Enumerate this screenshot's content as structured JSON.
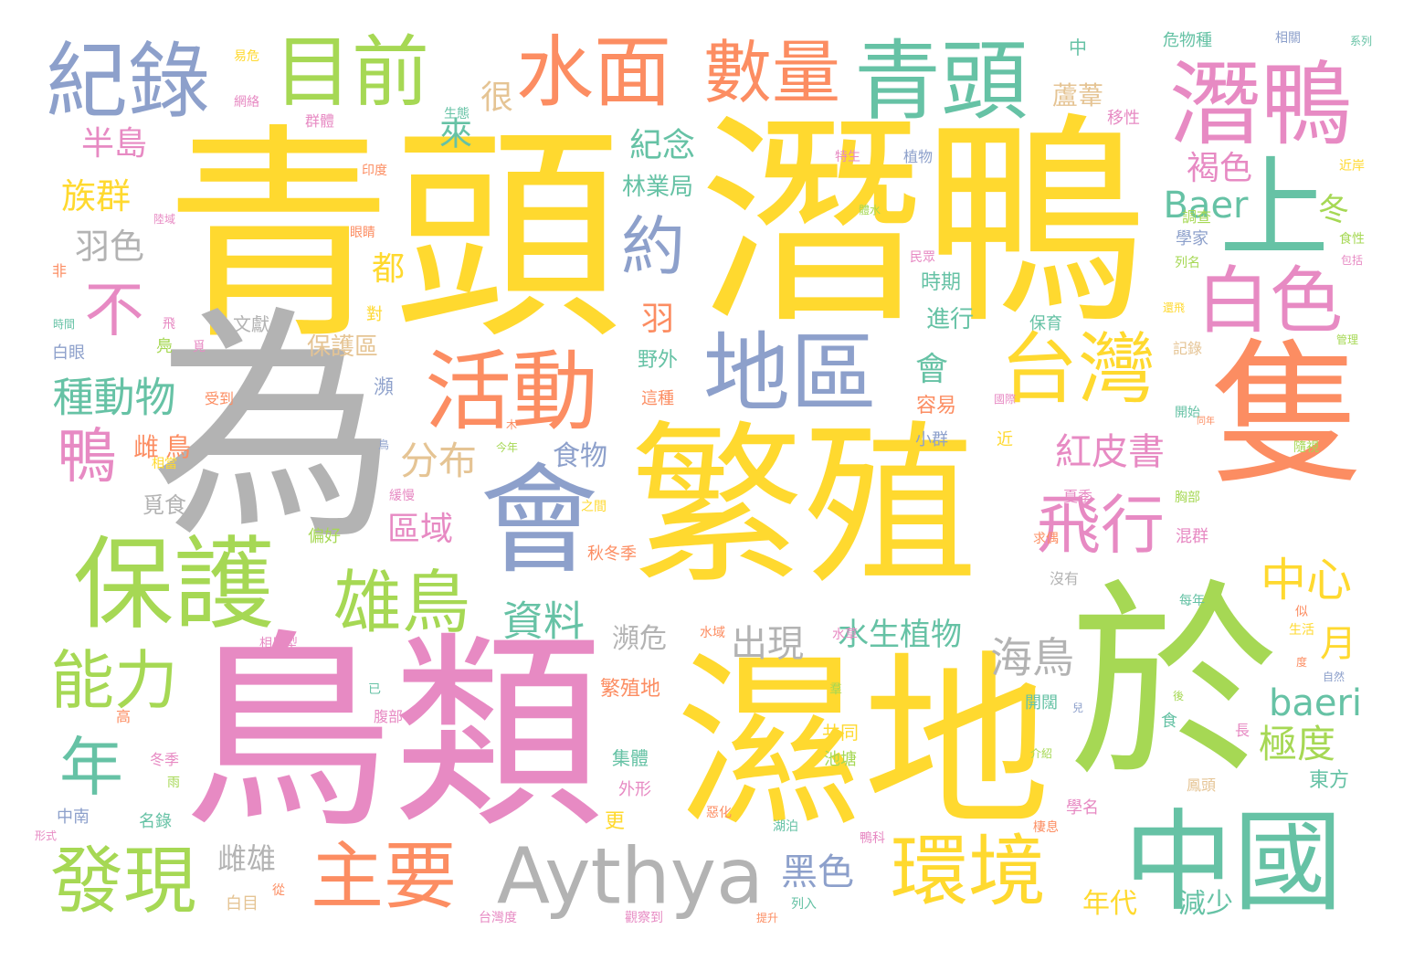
{
  "palette": {
    "yellow": "#ffd92f",
    "pink": "#e78ac3",
    "green": "#a6d854",
    "teal": "#66c2a5",
    "orange": "#fc8d62",
    "blue": "#8da0cb",
    "gray": "#b3b3b3",
    "tan": "#e5c494"
  },
  "words": [
    {
      "text": "青頭",
      "color": "yellow"
    },
    {
      "text": "潛鴨",
      "color": "yellow"
    },
    {
      "text": "為",
      "color": "gray"
    },
    {
      "text": "鳥類",
      "color": "pink"
    },
    {
      "text": "繁殖",
      "color": "yellow"
    },
    {
      "text": "濕地",
      "color": "yellow"
    },
    {
      "text": "於",
      "color": "green"
    },
    {
      "text": "隻",
      "color": "orange"
    },
    {
      "text": "中國",
      "color": "teal"
    },
    {
      "text": "會",
      "color": "blue"
    },
    {
      "text": "保護",
      "color": "green"
    },
    {
      "text": "上",
      "color": "teal"
    },
    {
      "text": "青頭",
      "color": "teal"
    },
    {
      "text": "潛鴨",
      "color": "pink"
    },
    {
      "text": "紀錄",
      "color": "blue"
    },
    {
      "text": "目前",
      "color": "green"
    },
    {
      "text": "水面",
      "color": "orange"
    },
    {
      "text": "數量",
      "color": "orange"
    },
    {
      "text": "活動",
      "color": "orange"
    },
    {
      "text": "地區",
      "color": "blue"
    },
    {
      "text": "台灣",
      "color": "yellow"
    },
    {
      "text": "白色",
      "color": "pink"
    },
    {
      "text": "Aythya",
      "color": "gray"
    },
    {
      "text": "環境",
      "color": "yellow"
    },
    {
      "text": "主要",
      "color": "orange"
    },
    {
      "text": "發現",
      "color": "green"
    },
    {
      "text": "雄鳥",
      "color": "green"
    },
    {
      "text": "能力",
      "color": "green"
    },
    {
      "text": "飛行",
      "color": "pink"
    },
    {
      "text": "約",
      "color": "blue"
    },
    {
      "text": "不",
      "color": "pink"
    },
    {
      "text": "鴨",
      "color": "pink"
    },
    {
      "text": "年",
      "color": "teal"
    },
    {
      "text": "種動物",
      "color": "teal"
    },
    {
      "text": "中心",
      "color": "yellow"
    },
    {
      "text": "紅皮書",
      "color": "pink"
    },
    {
      "text": "Baer",
      "color": "teal"
    },
    {
      "text": "baeri",
      "color": "teal"
    },
    {
      "text": "資料",
      "color": "teal"
    },
    {
      "text": "族群",
      "color": "yellow"
    },
    {
      "text": "羽色",
      "color": "gray"
    },
    {
      "text": "半島",
      "color": "pink"
    },
    {
      "text": "來",
      "color": "teal"
    },
    {
      "text": "很",
      "color": "tan"
    },
    {
      "text": "紀念",
      "color": "teal"
    },
    {
      "text": "林業局",
      "color": "teal"
    },
    {
      "text": "褐色",
      "color": "pink"
    },
    {
      "text": "冬",
      "color": "green"
    },
    {
      "text": "分布",
      "color": "tan"
    },
    {
      "text": "區域",
      "color": "pink"
    },
    {
      "text": "海鳥",
      "color": "gray"
    },
    {
      "text": "出現",
      "color": "gray"
    },
    {
      "text": "水生植物",
      "color": "teal"
    },
    {
      "text": "黑色",
      "color": "blue"
    },
    {
      "text": "極度",
      "color": "green"
    },
    {
      "text": "月",
      "color": "yellow"
    },
    {
      "text": "雌雄",
      "color": "gray"
    },
    {
      "text": "瀕危",
      "color": "gray"
    },
    {
      "text": "食物",
      "color": "blue"
    },
    {
      "text": "都",
      "color": "yellow"
    },
    {
      "text": "羽",
      "color": "orange"
    },
    {
      "text": "會",
      "color": "teal"
    },
    {
      "text": "保護區",
      "color": "tan"
    },
    {
      "text": "進行",
      "color": "teal"
    },
    {
      "text": "時期",
      "color": "teal"
    },
    {
      "text": "容易",
      "color": "orange"
    },
    {
      "text": "減少",
      "color": "teal"
    },
    {
      "text": "年代",
      "color": "yellow"
    },
    {
      "text": "東方",
      "color": "teal"
    },
    {
      "text": "繁殖地",
      "color": "orange"
    },
    {
      "text": "蘆葦",
      "color": "tan"
    },
    {
      "text": "中",
      "color": "teal"
    },
    {
      "text": "危物種",
      "color": "teal"
    },
    {
      "text": "相關",
      "color": "blue"
    },
    {
      "text": "系列",
      "color": "teal"
    },
    {
      "text": "移性",
      "color": "pink"
    },
    {
      "text": "植物",
      "color": "blue"
    },
    {
      "text": "學家",
      "color": "blue"
    },
    {
      "text": "調查",
      "color": "green"
    },
    {
      "text": "近岸",
      "color": "yellow"
    },
    {
      "text": "食性",
      "color": "green"
    },
    {
      "text": "包括",
      "color": "pink"
    },
    {
      "text": "列名",
      "color": "green"
    },
    {
      "text": "民眾",
      "color": "pink"
    },
    {
      "text": "野外",
      "color": "teal"
    },
    {
      "text": "這種",
      "color": "orange"
    },
    {
      "text": "文獻",
      "color": "gray"
    },
    {
      "text": "對",
      "color": "yellow"
    },
    {
      "text": "白眼",
      "color": "blue"
    },
    {
      "text": "非",
      "color": "orange"
    },
    {
      "text": "瀕",
      "color": "blue"
    },
    {
      "text": "受到",
      "color": "orange"
    },
    {
      "text": "雌",
      "color": "orange"
    },
    {
      "text": "鳥",
      "color": "orange"
    },
    {
      "text": "覓食",
      "color": "gray"
    },
    {
      "text": "偏好",
      "color": "green"
    },
    {
      "text": "秋冬季",
      "color": "orange"
    },
    {
      "text": "夏季",
      "color": "pink"
    },
    {
      "text": "混群",
      "color": "pink"
    },
    {
      "text": "胸部",
      "color": "green"
    },
    {
      "text": "沒有",
      "color": "gray"
    },
    {
      "text": "每年",
      "color": "teal"
    },
    {
      "text": "開闊",
      "color": "teal"
    },
    {
      "text": "共同",
      "color": "yellow"
    },
    {
      "text": "池塘",
      "color": "green"
    },
    {
      "text": "集體",
      "color": "teal"
    },
    {
      "text": "外形",
      "color": "pink"
    },
    {
      "text": "更",
      "color": "yellow"
    },
    {
      "text": "湖泊",
      "color": "teal"
    },
    {
      "text": "鴨科",
      "color": "pink"
    },
    {
      "text": "學名",
      "color": "pink"
    },
    {
      "text": "列入",
      "color": "teal"
    },
    {
      "text": "鳳頭",
      "color": "tan"
    },
    {
      "text": "觀察到",
      "color": "pink"
    },
    {
      "text": "台灣度",
      "color": "pink"
    },
    {
      "text": "提升",
      "color": "orange"
    },
    {
      "text": "白目",
      "color": "tan"
    },
    {
      "text": "名錄",
      "color": "teal"
    },
    {
      "text": "中南",
      "color": "blue"
    },
    {
      "text": "冬季",
      "color": "pink"
    },
    {
      "text": "腹部",
      "color": "pink"
    },
    {
      "text": "高",
      "color": "orange"
    },
    {
      "text": "已",
      "color": "teal"
    },
    {
      "text": "長",
      "color": "pink"
    },
    {
      "text": "食",
      "color": "teal"
    },
    {
      "text": "似",
      "color": "orange"
    },
    {
      "text": "生活",
      "color": "yellow"
    },
    {
      "text": "自然",
      "color": "blue"
    },
    {
      "text": "度",
      "color": "orange"
    },
    {
      "text": "後",
      "color": "green"
    },
    {
      "text": "兒",
      "color": "blue"
    },
    {
      "text": "水域",
      "color": "orange"
    },
    {
      "text": "羣",
      "color": "green"
    },
    {
      "text": "緩慢",
      "color": "pink"
    },
    {
      "text": "開始",
      "color": "teal"
    },
    {
      "text": "近",
      "color": "yellow"
    },
    {
      "text": "小群",
      "color": "blue"
    },
    {
      "text": "國際",
      "color": "pink"
    },
    {
      "text": "保育",
      "color": "teal"
    },
    {
      "text": "記錄",
      "color": "tan"
    },
    {
      "text": "還飛",
      "color": "yellow"
    },
    {
      "text": "管理",
      "color": "green"
    },
    {
      "text": "眼睛",
      "color": "orange"
    },
    {
      "text": "印度",
      "color": "orange"
    },
    {
      "text": "網絡",
      "color": "pink"
    },
    {
      "text": "群體",
      "color": "pink"
    },
    {
      "text": "易危",
      "color": "yellow"
    },
    {
      "text": "生態",
      "color": "teal"
    },
    {
      "text": "飛",
      "color": "pink"
    },
    {
      "text": "鳧",
      "color": "green"
    },
    {
      "text": "覓",
      "color": "pink"
    },
    {
      "text": "相異型",
      "color": "pink"
    },
    {
      "text": "水草",
      "color": "pink"
    },
    {
      "text": "求偶",
      "color": "orange"
    },
    {
      "text": "隨視",
      "color": "green"
    },
    {
      "text": "特生",
      "color": "pink"
    },
    {
      "text": "體水",
      "color": "green"
    },
    {
      "text": "時間",
      "color": "teal"
    },
    {
      "text": "雨",
      "color": "green"
    },
    {
      "text": "形式",
      "color": "pink"
    },
    {
      "text": "從",
      "color": "orange"
    },
    {
      "text": "惡化",
      "color": "orange"
    },
    {
      "text": "棲息",
      "color": "orange"
    },
    {
      "text": "介紹",
      "color": "green"
    },
    {
      "text": "陸域",
      "color": "pink"
    },
    {
      "text": "同年",
      "color": "orange"
    },
    {
      "text": "今年",
      "color": "green"
    },
    {
      "text": "木",
      "color": "orange"
    },
    {
      "text": "相當",
      "color": "yellow"
    },
    {
      "text": "之間",
      "color": "yellow"
    },
    {
      "text": "鳥",
      "color": "blue"
    }
  ]
}
